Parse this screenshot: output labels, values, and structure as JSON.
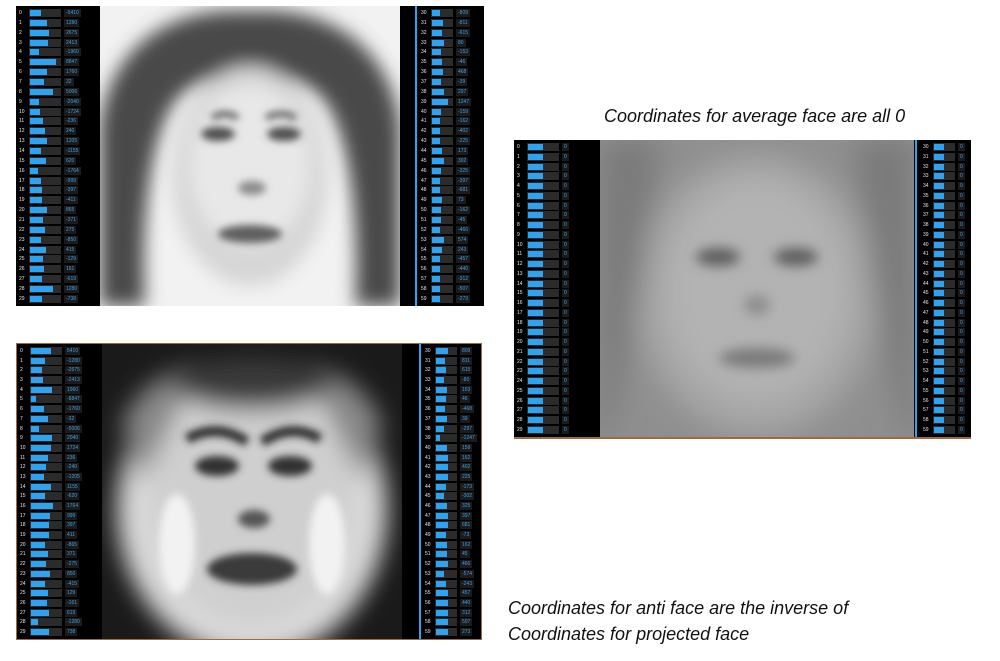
{
  "captions": {
    "average": "Coordinates for average face are all 0",
    "anti_line1": "Coordinates for anti face are the inverse of",
    "anti_line2": "Coordinates for projected face"
  },
  "colors": {
    "bar": "#2ea3f2",
    "slot": "#2b2b2b",
    "panel": "#000000"
  },
  "panels": {
    "projected": {
      "left_indices": [
        "0",
        "1",
        "2",
        "3",
        "4",
        "5",
        "6",
        "7",
        "8",
        "9",
        "10",
        "11",
        "12",
        "13",
        "14",
        "15",
        "16",
        "17",
        "18",
        "19",
        "20",
        "21",
        "22",
        "23",
        "24",
        "25",
        "26",
        "27",
        "28",
        "29"
      ],
      "left_values": [
        "-5410",
        "1280",
        "2675",
        "2413",
        "-1960",
        "8847",
        "1760",
        "32",
        "5006",
        "-2040",
        "-1724",
        "-236",
        "240",
        "1205",
        "-1155",
        "620",
        "-1764",
        "-999",
        "-397",
        "-411",
        "865",
        "-371",
        "275",
        "-850",
        "415",
        "-129",
        "161",
        "-619",
        "1280",
        "-738"
      ],
      "left_fill": [
        0.35,
        0.55,
        0.62,
        0.6,
        0.3,
        0.85,
        0.58,
        0.45,
        0.75,
        0.3,
        0.32,
        0.42,
        0.5,
        0.58,
        0.35,
        0.52,
        0.28,
        0.38,
        0.4,
        0.4,
        0.55,
        0.42,
        0.5,
        0.38,
        0.52,
        0.44,
        0.48,
        0.4,
        0.78,
        0.4
      ],
      "right_indices": [
        "30",
        "31",
        "32",
        "33",
        "34",
        "35",
        "36",
        "37",
        "38",
        "39",
        "40",
        "41",
        "42",
        "43",
        "44",
        "45",
        "46",
        "47",
        "48",
        "49",
        "50",
        "51",
        "52",
        "53",
        "54",
        "55",
        "56",
        "57",
        "58",
        "59"
      ],
      "right_values": [
        "-809",
        "-811",
        "-615",
        "80",
        "-153",
        "-46",
        "468",
        "-39",
        "297",
        "1247",
        "-159",
        "-162",
        "-402",
        "-225",
        "173",
        "302",
        "-325",
        "-397",
        "-681",
        "73",
        "-162",
        "-45",
        "-466",
        "574",
        "243",
        "-457",
        "-440",
        "-312",
        "-507",
        "-273"
      ],
      "right_fill": [
        0.4,
        0.55,
        0.5,
        0.62,
        0.45,
        0.48,
        0.55,
        0.46,
        0.6,
        0.78,
        0.45,
        0.42,
        0.38,
        0.42,
        0.52,
        0.6,
        0.44,
        0.4,
        0.38,
        0.52,
        0.44,
        0.46,
        0.38,
        0.6,
        0.5,
        0.4,
        0.4,
        0.42,
        0.38,
        0.4
      ]
    },
    "anti": {
      "left_indices": [
        "0",
        "1",
        "2",
        "3",
        "4",
        "5",
        "6",
        "7",
        "8",
        "9",
        "10",
        "11",
        "12",
        "13",
        "14",
        "15",
        "16",
        "17",
        "18",
        "19",
        "20",
        "21",
        "22",
        "23",
        "24",
        "25",
        "26",
        "27",
        "28",
        "29"
      ],
      "left_values": [
        "5410",
        "-1280",
        "-2675",
        "-2413",
        "1960",
        "-8847",
        "-1760",
        "-32",
        "-5006",
        "2040",
        "1724",
        "236",
        "-240",
        "-1205",
        "1155",
        "-620",
        "1764",
        "999",
        "397",
        "411",
        "-865",
        "371",
        "-275",
        "850",
        "-415",
        "129",
        "-161",
        "619",
        "-1280",
        "738"
      ],
      "left_fill": [
        0.65,
        0.45,
        0.38,
        0.4,
        0.7,
        0.15,
        0.42,
        0.55,
        0.25,
        0.7,
        0.68,
        0.58,
        0.5,
        0.42,
        0.65,
        0.48,
        0.72,
        0.62,
        0.6,
        0.6,
        0.45,
        0.58,
        0.5,
        0.62,
        0.48,
        0.56,
        0.52,
        0.6,
        0.22,
        0.6
      ],
      "right_indices": [
        "30",
        "31",
        "32",
        "33",
        "34",
        "35",
        "36",
        "37",
        "38",
        "39",
        "40",
        "41",
        "42",
        "43",
        "44",
        "45",
        "46",
        "47",
        "48",
        "49",
        "50",
        "51",
        "52",
        "53",
        "54",
        "55",
        "56",
        "57",
        "58",
        "59"
      ],
      "right_values": [
        "809",
        "811",
        "615",
        "-80",
        "153",
        "46",
        "-468",
        "39",
        "-297",
        "-1247",
        "159",
        "162",
        "402",
        "225",
        "-173",
        "-302",
        "325",
        "397",
        "681",
        "-73",
        "162",
        "45",
        "466",
        "-574",
        "-243",
        "457",
        "440",
        "312",
        "507",
        "273"
      ],
      "right_fill": [
        0.6,
        0.45,
        0.5,
        0.38,
        0.55,
        0.52,
        0.45,
        0.54,
        0.4,
        0.22,
        0.55,
        0.58,
        0.62,
        0.58,
        0.48,
        0.4,
        0.56,
        0.6,
        0.62,
        0.48,
        0.56,
        0.54,
        0.62,
        0.4,
        0.5,
        0.6,
        0.6,
        0.58,
        0.62,
        0.6
      ]
    },
    "average": {
      "left_indices": [
        "0",
        "1",
        "2",
        "3",
        "4",
        "5",
        "6",
        "7",
        "8",
        "9",
        "10",
        "11",
        "12",
        "13",
        "14",
        "15",
        "16",
        "17",
        "18",
        "19",
        "20",
        "21",
        "22",
        "23",
        "24",
        "25",
        "26",
        "27",
        "28",
        "29"
      ],
      "left_values": [
        "0",
        "0",
        "0",
        "0",
        "0",
        "0",
        "0",
        "0",
        "0",
        "0",
        "0",
        "0",
        "0",
        "0",
        "0",
        "0",
        "0",
        "0",
        "0",
        "0",
        "0",
        "0",
        "0",
        "0",
        "0",
        "0",
        "0",
        "0",
        "0",
        "0"
      ],
      "left_fill": [
        0.5,
        0.5,
        0.5,
        0.5,
        0.5,
        0.5,
        0.5,
        0.5,
        0.5,
        0.5,
        0.5,
        0.5,
        0.5,
        0.5,
        0.5,
        0.5,
        0.5,
        0.5,
        0.5,
        0.5,
        0.5,
        0.5,
        0.5,
        0.5,
        0.5,
        0.5,
        0.5,
        0.5,
        0.5,
        0.5
      ],
      "right_indices": [
        "30",
        "31",
        "32",
        "33",
        "34",
        "35",
        "36",
        "37",
        "38",
        "39",
        "40",
        "41",
        "42",
        "43",
        "44",
        "45",
        "46",
        "47",
        "48",
        "49",
        "50",
        "51",
        "52",
        "53",
        "54",
        "55",
        "56",
        "57",
        "58",
        "59"
      ],
      "right_values": [
        "0",
        "0",
        "0",
        "0",
        "0",
        "0",
        "0",
        "0",
        "0",
        "0",
        "0",
        "0",
        "0",
        "0",
        "0",
        "0",
        "0",
        "0",
        "0",
        "0",
        "0",
        "0",
        "0",
        "0",
        "0",
        "0",
        "0",
        "0",
        "0",
        "0"
      ],
      "right_fill": [
        0.5,
        0.5,
        0.5,
        0.5,
        0.5,
        0.5,
        0.5,
        0.5,
        0.5,
        0.5,
        0.5,
        0.5,
        0.5,
        0.5,
        0.5,
        0.5,
        0.5,
        0.5,
        0.5,
        0.5,
        0.5,
        0.5,
        0.5,
        0.5,
        0.5,
        0.5,
        0.5,
        0.5,
        0.5,
        0.5
      ]
    }
  }
}
